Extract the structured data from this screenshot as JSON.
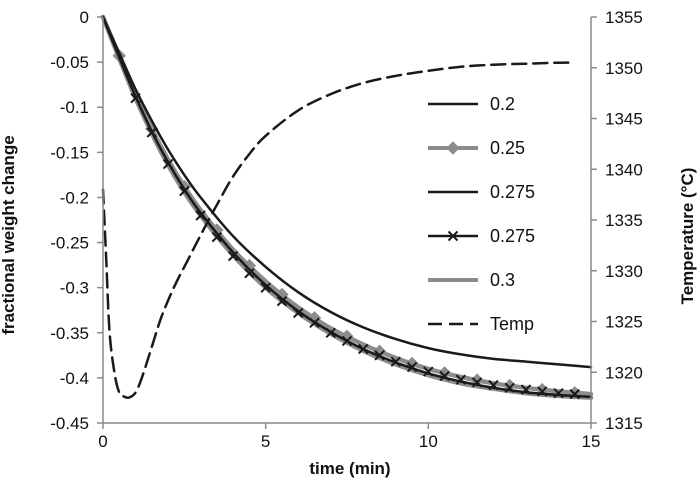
{
  "chart_data": {
    "type": "line",
    "title": "",
    "xlabel": "time (min)",
    "ylabel": "fractional weight change",
    "y2label": "Temperature (°C)",
    "xlim": [
      0,
      15
    ],
    "ylim": [
      -0.45,
      0
    ],
    "y2lim": [
      1315,
      1355
    ],
    "x_ticks": [
      0,
      5,
      10,
      15
    ],
    "y_ticks": [
      0,
      -0.05,
      -0.1,
      -0.15,
      -0.2,
      -0.25,
      -0.3,
      -0.35,
      -0.4,
      -0.45
    ],
    "y_tick_labels": [
      "0",
      "-0.05",
      "-0.1",
      "-0.15",
      "-0.2",
      "-0.25",
      "-0.3",
      "-0.35",
      "-0.4",
      "-0.45"
    ],
    "y2_ticks": [
      1355,
      1350,
      1345,
      1340,
      1335,
      1330,
      1325,
      1320,
      1315
    ],
    "grid": false,
    "legend_position": "right",
    "series": [
      {
        "name": "0.2",
        "axis": "left",
        "color": "#1a1a1a",
        "dash": "solid",
        "marker": "none",
        "x": [
          0,
          0.5,
          1,
          1.5,
          2,
          2.5,
          3,
          4,
          5,
          6,
          7,
          8,
          9,
          10,
          11,
          12,
          13,
          14,
          15
        ],
        "y": [
          0,
          -0.04,
          -0.08,
          -0.115,
          -0.147,
          -0.175,
          -0.2,
          -0.243,
          -0.277,
          -0.305,
          -0.327,
          -0.344,
          -0.357,
          -0.367,
          -0.374,
          -0.379,
          -0.382,
          -0.385,
          -0.388
        ]
      },
      {
        "name": "0.25",
        "axis": "left",
        "color": "#8c8c8c",
        "dash": "solid",
        "marker": "diamond",
        "x": [
          0,
          0.5,
          1,
          1.5,
          2,
          2.5,
          3,
          4,
          5,
          6,
          7,
          8,
          9,
          10,
          11,
          12,
          13,
          14,
          15
        ],
        "y": [
          0,
          -0.043,
          -0.086,
          -0.124,
          -0.158,
          -0.188,
          -0.214,
          -0.258,
          -0.293,
          -0.322,
          -0.345,
          -0.363,
          -0.378,
          -0.39,
          -0.399,
          -0.406,
          -0.411,
          -0.415,
          -0.418
        ]
      },
      {
        "name": "0.275",
        "axis": "left",
        "color": "#1a1a1a",
        "dash": "solid",
        "marker": "none",
        "x": [
          0,
          0.5,
          1,
          1.5,
          2,
          2.5,
          3,
          4,
          5,
          6,
          7,
          8,
          9,
          10,
          11,
          12,
          13,
          14,
          15
        ],
        "y": [
          0,
          -0.045,
          -0.088,
          -0.127,
          -0.161,
          -0.191,
          -0.217,
          -0.261,
          -0.297,
          -0.326,
          -0.349,
          -0.368,
          -0.383,
          -0.395,
          -0.404,
          -0.411,
          -0.416,
          -0.419,
          -0.421
        ]
      },
      {
        "name": "0.275",
        "axis": "left",
        "color": "#1a1a1a",
        "dash": "none",
        "marker": "x",
        "x": [
          1,
          1.5,
          2,
          2.5,
          3,
          3.5,
          4,
          4.5,
          5,
          5.5,
          6,
          6.5,
          7,
          7.5,
          8,
          8.5,
          9,
          9.5,
          10,
          10.5,
          11,
          11.5,
          12,
          12.5,
          13,
          13.5,
          14,
          14.5
        ],
        "y": [
          -0.09,
          -0.128,
          -0.163,
          -0.193,
          -0.22,
          -0.244,
          -0.265,
          -0.284,
          -0.3,
          -0.315,
          -0.328,
          -0.339,
          -0.35,
          -0.359,
          -0.368,
          -0.375,
          -0.382,
          -0.388,
          -0.393,
          -0.398,
          -0.402,
          -0.405,
          -0.408,
          -0.411,
          -0.413,
          -0.415,
          -0.417,
          -0.418
        ]
      },
      {
        "name": "0.3",
        "axis": "left",
        "color": "#8c8c8c",
        "dash": "solid",
        "marker": "none",
        "x": [
          0,
          0.5,
          1,
          1.5,
          2,
          2.5,
          3,
          4,
          5,
          6,
          7,
          8,
          9,
          10,
          11,
          12,
          13,
          14,
          15
        ],
        "y": [
          0,
          -0.046,
          -0.09,
          -0.129,
          -0.164,
          -0.194,
          -0.22,
          -0.264,
          -0.3,
          -0.328,
          -0.351,
          -0.37,
          -0.385,
          -0.397,
          -0.406,
          -0.412,
          -0.417,
          -0.42,
          -0.422
        ]
      },
      {
        "name": "Temp",
        "axis": "right",
        "color": "#1a1a1a",
        "dash": "dash",
        "marker": "none",
        "x": [
          0,
          0.1,
          0.2,
          0.35,
          0.5,
          0.65,
          0.8,
          1.0,
          1.2,
          1.5,
          1.8,
          2.2,
          2.6,
          3.0,
          3.5,
          4.0,
          4.5,
          5.0,
          6.0,
          7.0,
          8.0,
          9.0,
          10.0,
          11.0,
          12.0,
          13.0,
          14.0,
          14.5
        ],
        "y": [
          1338,
          1331,
          1324,
          1320,
          1318,
          1317.6,
          1317.5,
          1318,
          1319.5,
          1322.5,
          1325.5,
          1328.5,
          1331,
          1333.5,
          1336.5,
          1339.3,
          1341.5,
          1343.3,
          1345.8,
          1347.4,
          1348.5,
          1349.2,
          1349.7,
          1350.1,
          1350.3,
          1350.4,
          1350.5,
          1350.5
        ]
      }
    ]
  }
}
